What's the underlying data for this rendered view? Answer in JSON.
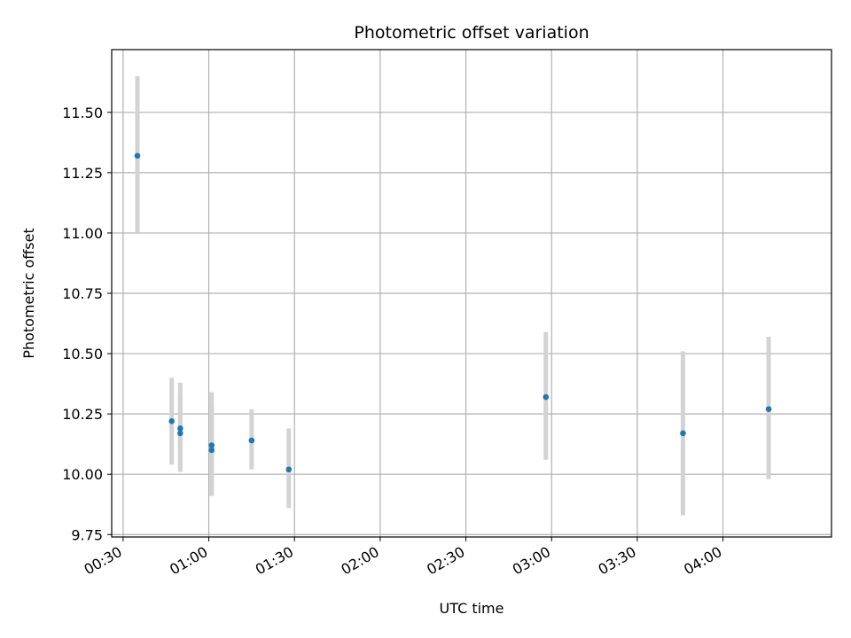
{
  "chart_data": {
    "type": "scatter",
    "title": "Photometric offset variation",
    "xlabel": "UTC time",
    "ylabel": "Photometric offset",
    "x_axis_kind": "time",
    "xlim": [
      "00:26",
      "04:38"
    ],
    "ylim": [
      9.74,
      11.76
    ],
    "grid": true,
    "x_ticks": [
      "00:30",
      "01:00",
      "01:30",
      "02:00",
      "02:30",
      "03:00",
      "03:30",
      "04:00"
    ],
    "y_ticks": [
      "9.75",
      "10.00",
      "10.25",
      "10.50",
      "10.75",
      "11.00",
      "11.25",
      "11.50"
    ],
    "colors": {
      "point": "#1f77b4",
      "errorbar": "#d3d3d3",
      "grid": "#b0b0b0"
    },
    "points": [
      {
        "x": "00:35",
        "y": 11.32,
        "err_low": 11.0,
        "err_high": 11.65
      },
      {
        "x": "00:47",
        "y": 10.22,
        "err_low": 10.04,
        "err_high": 10.4
      },
      {
        "x": "00:50",
        "y": 10.19,
        "err_low": 10.02,
        "err_high": 10.38
      },
      {
        "x": "00:50",
        "y": 10.17,
        "err_low": 10.01,
        "err_high": 10.33
      },
      {
        "x": "01:01",
        "y": 10.1,
        "err_low": 9.91,
        "err_high": 10.29
      },
      {
        "x": "01:01",
        "y": 10.12,
        "err_low": 9.93,
        "err_high": 10.34
      },
      {
        "x": "01:15",
        "y": 10.14,
        "err_low": 10.02,
        "err_high": 10.27
      },
      {
        "x": "01:28",
        "y": 10.02,
        "err_low": 9.86,
        "err_high": 10.19
      },
      {
        "x": "02:58",
        "y": 10.32,
        "err_low": 10.06,
        "err_high": 10.59
      },
      {
        "x": "03:46",
        "y": 10.17,
        "err_low": 9.83,
        "err_high": 10.51
      },
      {
        "x": "04:16",
        "y": 10.27,
        "err_low": 9.98,
        "err_high": 10.57
      }
    ]
  }
}
